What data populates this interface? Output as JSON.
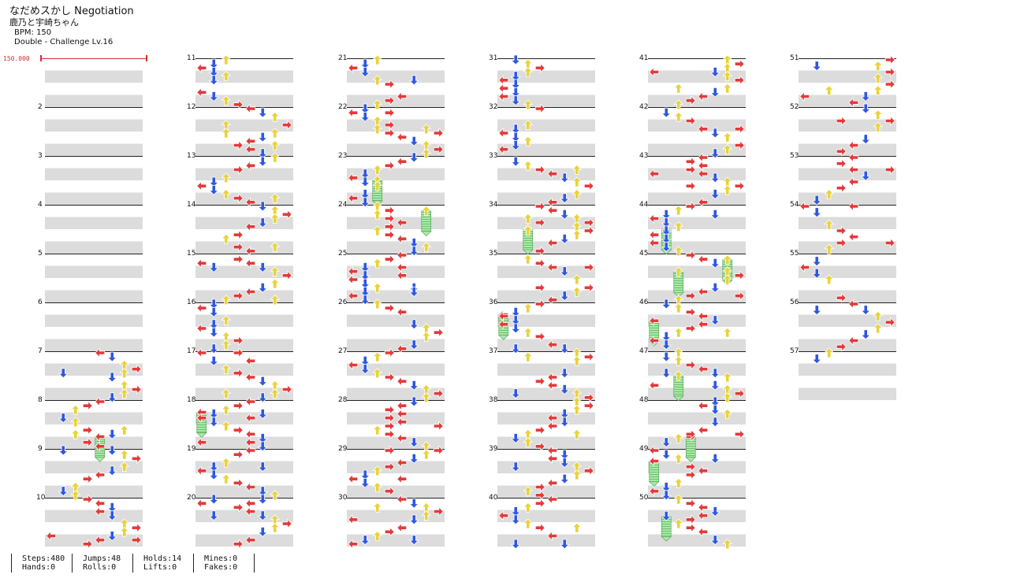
{
  "song": {
    "title": "なだめスかし Negotiation",
    "artist": "鹿乃と宇崎ちゃん",
    "bpm_label": "BPM: 150",
    "chart_label": "Double - Challenge Lv.16"
  },
  "bpm_change": "150.000",
  "colors": {
    "left": "#e33a3a",
    "down": "#2f57e0",
    "up": "#e8d33a",
    "right": "#e33a3a",
    "hold": "#9fe09f",
    "measure_line": "#222222",
    "band": "#dcdcdc",
    "bpm": "#d03030"
  },
  "measure_numbers": [
    "2",
    "3",
    "4",
    "5",
    "6",
    "7",
    "8",
    "9",
    "10",
    "11",
    "12",
    "13",
    "14",
    "15",
    "16",
    "17",
    "18",
    "19",
    "20",
    "21",
    "22",
    "23",
    "24",
    "25",
    "26",
    "27",
    "28",
    "29",
    "30",
    "31",
    "32",
    "33",
    "34",
    "35",
    "36",
    "37",
    "38",
    "39",
    "40",
    "41",
    "42",
    "43",
    "44",
    "45",
    "46",
    "47",
    "48",
    "49",
    "50",
    "51",
    "52",
    "53",
    "54",
    "55",
    "56",
    "57"
  ],
  "stats": {
    "steps": "Steps:480",
    "hands": "Hands:0",
    "jumps": "Jumps:48",
    "rolls": "Rolls:0",
    "holds": "Holds:14",
    "lifts": "Lifts:0",
    "mines": "Mines:0",
    "fakes": "Fakes:0"
  }
}
